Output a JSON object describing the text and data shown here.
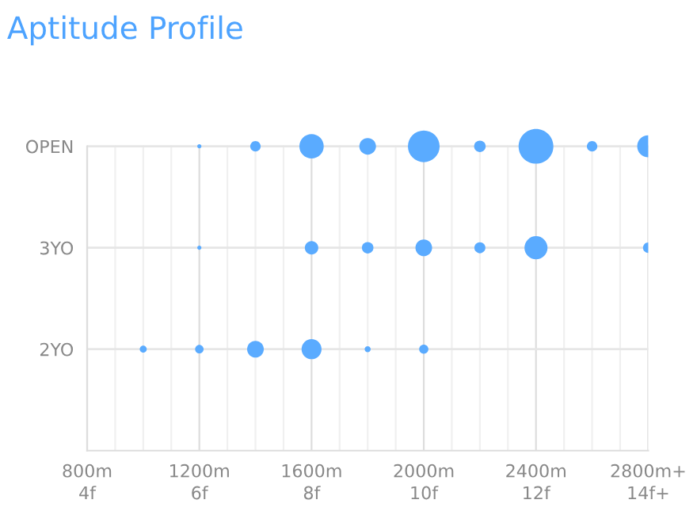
{
  "chart_data": {
    "type": "bubble",
    "title": "Aptitude Profile",
    "orientation": "horizontal",
    "categories": [
      "OPEN",
      "3YO",
      "2YO"
    ],
    "xlim": [
      800,
      2800
    ],
    "xticks": [
      {
        "value": 800,
        "label": "800m"
      },
      {
        "value": 900,
        "label": null
      },
      {
        "value": 1000,
        "label": null
      },
      {
        "value": 1100,
        "label": null
      },
      {
        "value": 1200,
        "label": "1200m"
      },
      {
        "value": 1300,
        "label": null
      },
      {
        "value": 1400,
        "label": null
      },
      {
        "value": 1500,
        "label": null
      },
      {
        "value": 1600,
        "label": "1600m"
      },
      {
        "value": 1700,
        "label": null
      },
      {
        "value": 1800,
        "label": null
      },
      {
        "value": 1900,
        "label": null
      },
      {
        "value": 2000,
        "label": "2000m"
      },
      {
        "value": 2100,
        "label": null
      },
      {
        "value": 2200,
        "label": null
      },
      {
        "value": 2300,
        "label": null
      },
      {
        "value": 2400,
        "label": "2400m"
      },
      {
        "value": 2500,
        "label": null
      },
      {
        "value": 2600,
        "label": null
      },
      {
        "value": 2700,
        "label": null
      },
      {
        "value": 2800,
        "label": "2800m+"
      }
    ],
    "x2lim": [
      4,
      14
    ],
    "x2ticks": [
      {
        "value": 4,
        "label": "4f"
      },
      {
        "value": 6,
        "label": "6f"
      },
      {
        "value": 8,
        "label": "8f"
      },
      {
        "value": 10,
        "label": "10f"
      },
      {
        "value": 12,
        "label": "12f"
      },
      {
        "value": 14,
        "label": "14f+"
      }
    ],
    "grid": true,
    "series": [
      {
        "color": "#5aabff",
        "values": [
          null,
          null,
          1000
        ],
        "sizes": [
          null,
          null,
          0.04
        ]
      },
      {
        "color": "#5aabff",
        "values": [
          1200,
          1200,
          1200
        ],
        "sizes": [
          0.014,
          0.014,
          0.06
        ]
      },
      {
        "color": "#5aabff",
        "values": [
          1400,
          null,
          1400
        ],
        "sizes": [
          0.09,
          null,
          0.23
        ]
      },
      {
        "color": "#5aabff",
        "values": [
          1600,
          1600,
          1600
        ],
        "sizes": [
          0.49,
          0.15,
          0.33
        ]
      },
      {
        "color": "#5aabff",
        "values": [
          1800,
          1800,
          1800
        ],
        "sizes": [
          0.23,
          0.11,
          0.03
        ]
      },
      {
        "color": "#5aabff",
        "values": [
          2000,
          2000,
          2000
        ],
        "sizes": [
          0.83,
          0.23,
          0.07
        ]
      },
      {
        "color": "#5aabff",
        "values": [
          2200,
          2200,
          null
        ],
        "sizes": [
          0.11,
          0.1,
          null
        ]
      },
      {
        "color": "#5aabff",
        "values": [
          2400,
          2400,
          null
        ],
        "sizes": [
          1,
          0.44,
          null
        ]
      },
      {
        "color": "#5aabff",
        "values": [
          2600,
          null,
          null
        ],
        "sizes": [
          0.09,
          null,
          null
        ]
      },
      {
        "color": "#5aabff",
        "values": [
          2800,
          2800,
          null
        ],
        "sizes": [
          0.4,
          0.09,
          null
        ]
      }
    ]
  }
}
